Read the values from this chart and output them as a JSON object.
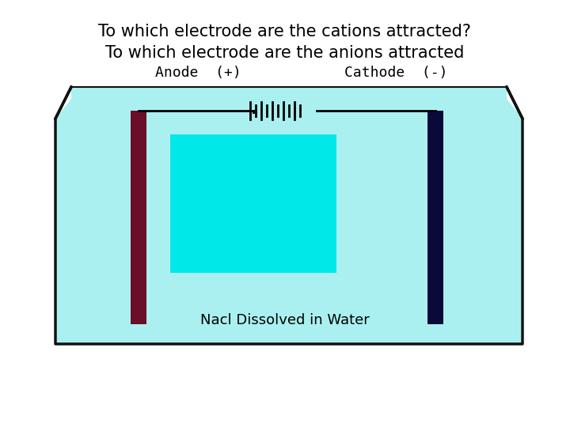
{
  "title_line1": "To which electrode are the cations attracted?",
  "title_line2": "To which electrode are the anions attracted",
  "title_fontsize": 15,
  "bg_color": "#ffffff",
  "beaker_fill": "#aaf0f0",
  "beaker_outline": "#111111",
  "anode_color": "#6b0e28",
  "cathode_color": "#0a0a3a",
  "inner_rect_color": "#00e8e8",
  "label_anode": "Anode  (+)",
  "label_cathode": "Cathode  (-)",
  "nacl_label": "Nacl Dissolved in Water",
  "label_fontsize": 13,
  "nacl_fontsize": 13
}
